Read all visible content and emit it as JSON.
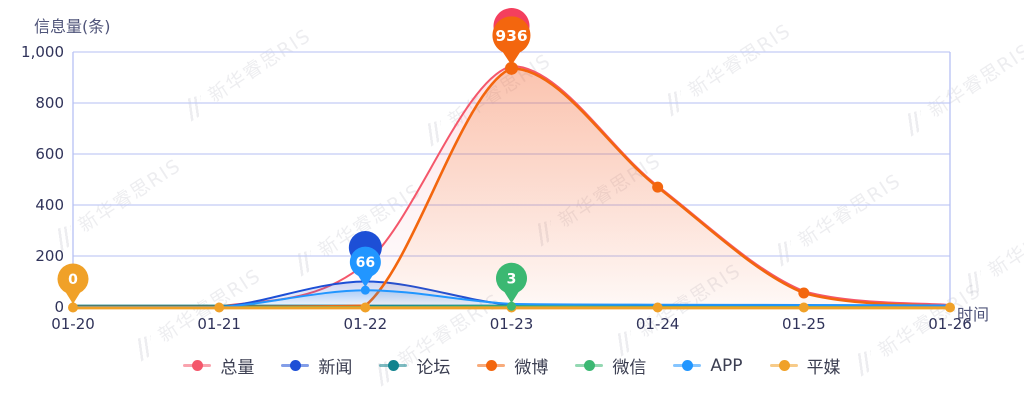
{
  "axis": {
    "y_title": "信息量(条)",
    "x_title": "时间",
    "y_ticks": [
      "0",
      "200",
      "400",
      "600",
      "800",
      "1,000"
    ]
  },
  "watermark": {
    "text": "新华睿思RIS"
  },
  "colors": {
    "grid_line": "#c3ccf5",
    "axis_line": "#b7c1f3",
    "tick_text": "#30335a",
    "axis_title_text": "#50557a",
    "legend_text": "#3c3f52",
    "baseline_dot": "#f0a128"
  },
  "chart_data": {
    "type": "area",
    "title": "",
    "xlabel": "时间",
    "ylabel": "信息量(条)",
    "categories": [
      "01-20",
      "01-21",
      "01-22",
      "01-23",
      "01-24",
      "01-25",
      "01-26"
    ],
    "ylim": [
      0,
      1000
    ],
    "y_tick_step": 200,
    "grid": true,
    "legend_position": "bottom",
    "series": [
      {
        "key": "zongliang",
        "name": "总量",
        "color": "#f4576b",
        "values": [
          0,
          2,
          170,
          945,
          475,
          62,
          8
        ]
      },
      {
        "key": "xinwen",
        "name": "新闻",
        "color": "#1d4fd6",
        "values": [
          0,
          0,
          100,
          8,
          2,
          1,
          1
        ]
      },
      {
        "key": "luntan",
        "name": "论坛",
        "color": "#12838e",
        "values": [
          0,
          0,
          0,
          0,
          0,
          0,
          0
        ]
      },
      {
        "key": "weibo",
        "name": "微博",
        "color": "#f3660e",
        "values": [
          0,
          0,
          5,
          936,
          470,
          55,
          2
        ]
      },
      {
        "key": "weixin",
        "name": "微信",
        "color": "#3bb872",
        "values": [
          0,
          0,
          0,
          3,
          0,
          0,
          0
        ]
      },
      {
        "key": "app",
        "name": "APP",
        "color": "#2196ff",
        "values": [
          0,
          0,
          66,
          12,
          9,
          8,
          6
        ]
      },
      {
        "key": "pingmei",
        "name": "平媒",
        "color": "#f0a128",
        "values": [
          0,
          0,
          0,
          0,
          0,
          0,
          0
        ]
      }
    ],
    "markers": [
      {
        "series": "总量",
        "category": "01-23",
        "value": "",
        "color": "#f43f5e",
        "behind": true,
        "size": "large"
      },
      {
        "series": "微博",
        "category": "01-23",
        "value": "936",
        "color": "#f3660e",
        "behind": false,
        "size": "large"
      },
      {
        "series": "新闻",
        "category": "01-22",
        "value": "",
        "color": "#1d4fd6",
        "behind": true,
        "size": "normal"
      },
      {
        "series": "APP",
        "category": "01-22",
        "value": "66",
        "color": "#2196ff",
        "behind": false,
        "size": "normal"
      },
      {
        "series": "微信",
        "category": "01-23",
        "value": "3",
        "color": "#3bb872",
        "behind": false,
        "size": "normal"
      },
      {
        "series": "平媒",
        "category": "01-20",
        "value": "0",
        "color": "#f0a128",
        "behind": false,
        "size": "normal"
      }
    ],
    "point_dots": [
      {
        "series": "微博",
        "category": "01-24"
      },
      {
        "series": "微博",
        "category": "01-25"
      }
    ]
  }
}
